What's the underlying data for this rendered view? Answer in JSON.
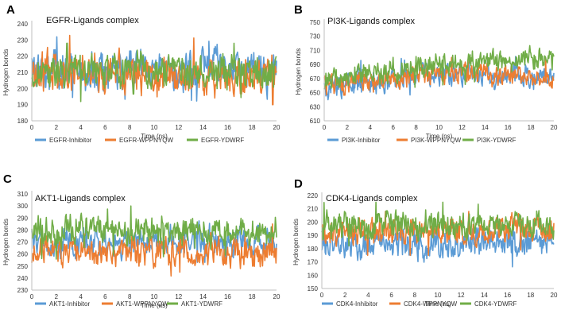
{
  "colors": {
    "inhibitor": "#5b9bd5",
    "wppnyqw": "#ed7d31",
    "ydwrf": "#70ad47"
  },
  "chart_data": [
    {
      "type": "line",
      "panel_label": "A",
      "title": "EGFR-Ligands complex",
      "xlabel": "Time (ns)",
      "ylabel": "Hydrogen bonds",
      "xlim": [
        0,
        20
      ],
      "ylim": [
        180,
        240
      ],
      "xticks": [
        0,
        2,
        4,
        6,
        8,
        10,
        12,
        14,
        16,
        18,
        20
      ],
      "yticks": [
        180,
        190,
        200,
        210,
        220,
        230,
        240
      ],
      "grid": false,
      "legend_position": "bottom",
      "series": [
        {
          "name": "EGFR-Inhibitor",
          "mean": [
            211,
            211,
            211
          ],
          "spread": 9,
          "min": 190,
          "max": 232,
          "color": "#5b9bd5"
        },
        {
          "name": "EGFR-WPPNYQW",
          "mean": [
            212,
            208,
            209
          ],
          "spread": 9,
          "min": 190,
          "max": 236,
          "color": "#ed7d31"
        },
        {
          "name": "EGFR-YDWRF",
          "mean": [
            210,
            210,
            210
          ],
          "spread": 8,
          "min": 186,
          "max": 228,
          "color": "#70ad47"
        }
      ]
    },
    {
      "type": "line",
      "panel_label": "B",
      "title": "PI3K-Ligands complex",
      "xlabel": "Time (ns)",
      "ylabel": "Hydrogen bonds",
      "xlim": [
        0,
        20
      ],
      "ylim": [
        610,
        750
      ],
      "xticks": [
        0,
        2,
        4,
        6,
        8,
        10,
        12,
        14,
        16,
        18,
        20
      ],
      "yticks": [
        610,
        630,
        650,
        670,
        690,
        710,
        730,
        750
      ],
      "grid": false,
      "legend_position": "bottom",
      "series": [
        {
          "name": "PI3K-Inhibitor",
          "mean": [
            655,
            678,
            670
          ],
          "spread": 12,
          "min": 625,
          "max": 733,
          "color": "#5b9bd5"
        },
        {
          "name": "PI3K-WPPNYQW",
          "mean": [
            660,
            678,
            672
          ],
          "spread": 11,
          "min": 640,
          "max": 700,
          "color": "#ed7d31"
        },
        {
          "name": "PI3K-YDWRF",
          "mean": [
            668,
            690,
            700
          ],
          "spread": 12,
          "min": 650,
          "max": 737,
          "color": "#70ad47"
        }
      ]
    },
    {
      "type": "line",
      "panel_label": "C",
      "title": "AKT1-Ligands complex",
      "xlabel": "Time (ns)",
      "ylabel": "Hydrogen bonds",
      "xlim": [
        0,
        20
      ],
      "ylim": [
        230,
        310
      ],
      "xticks": [
        0,
        2,
        4,
        6,
        8,
        10,
        12,
        14,
        16,
        18,
        20
      ],
      "yticks": [
        230,
        240,
        250,
        260,
        270,
        280,
        290,
        300,
        310
      ],
      "grid": false,
      "legend_position": "bottom",
      "series": [
        {
          "name": "AKT1-Inhibitor",
          "mean": [
            268,
            270,
            270
          ],
          "spread": 9,
          "min": 248,
          "max": 297,
          "color": "#5b9bd5"
        },
        {
          "name": "AKT1-WPPNYQW",
          "mean": [
            262,
            262,
            263
          ],
          "spread": 9,
          "min": 240,
          "max": 285,
          "color": "#ed7d31"
        },
        {
          "name": "AKT1-YDWRF",
          "mean": [
            280,
            279,
            278
          ],
          "spread": 9,
          "min": 255,
          "max": 302,
          "color": "#70ad47"
        }
      ]
    },
    {
      "type": "line",
      "panel_label": "D",
      "title": "CDK4-Ligands complex",
      "xlabel": "Time (ns)",
      "ylabel": "Hydrogen bonds",
      "xlim": [
        0,
        20
      ],
      "ylim": [
        150,
        220
      ],
      "xticks": [
        0,
        2,
        4,
        6,
        8,
        10,
        12,
        14,
        16,
        18,
        20
      ],
      "yticks": [
        150,
        160,
        170,
        180,
        190,
        200,
        210,
        220
      ],
      "grid": false,
      "legend_position": "bottom",
      "series": [
        {
          "name": "CDK4-Inhibitor",
          "mean": [
            184,
            183,
            186
          ],
          "spread": 8,
          "min": 162,
          "max": 200,
          "color": "#5b9bd5"
        },
        {
          "name": "CDK4-WPPNYQW",
          "mean": [
            192,
            193,
            195
          ],
          "spread": 8,
          "min": 175,
          "max": 208,
          "color": "#ed7d31"
        },
        {
          "name": "CDK4-YDWRF",
          "mean": [
            197,
            198,
            197
          ],
          "spread": 8,
          "min": 180,
          "max": 215,
          "color": "#70ad47"
        }
      ]
    }
  ]
}
